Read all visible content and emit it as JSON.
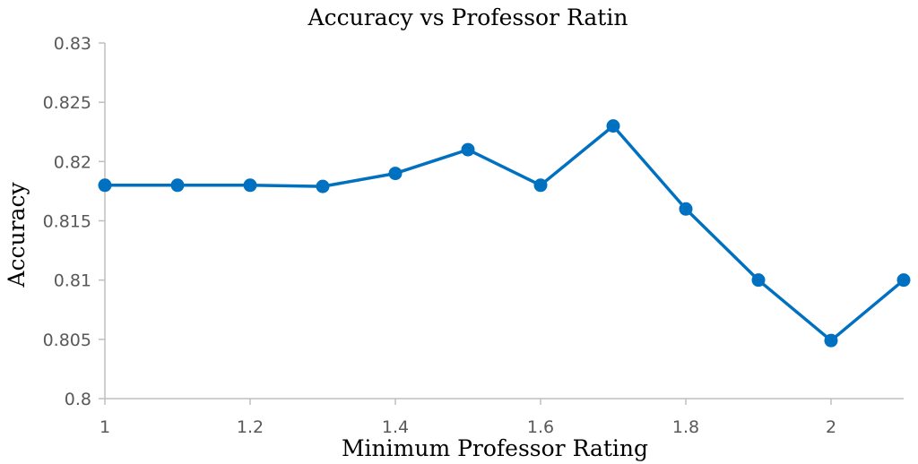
{
  "chart_data": {
    "type": "line",
    "title": "Accuracy vs Professor Ratin",
    "xlabel": "Minimum Professor Rating",
    "ylabel": "Accuracy",
    "xlim": [
      1,
      2.1
    ],
    "ylim": [
      0.8,
      0.83
    ],
    "x_ticks": [
      1,
      1.2,
      1.4,
      1.6,
      1.8,
      2
    ],
    "x_tick_labels": [
      "1",
      "1.2",
      "1.4",
      "1.6",
      "1.8",
      "2"
    ],
    "y_ticks": [
      0.8,
      0.805,
      0.81,
      0.815,
      0.82,
      0.825,
      0.83
    ],
    "y_tick_labels": [
      "0.8",
      "0.805",
      "0.81",
      "0.815",
      "0.82",
      "0.825",
      "0.83"
    ],
    "grid": false,
    "legend": "none",
    "series": [
      {
        "color": "#0070C0",
        "x": [
          1.0,
          1.1,
          1.2,
          1.3,
          1.4,
          1.5,
          1.6,
          1.7,
          1.8,
          1.9,
          2.0,
          2.1
        ],
        "y": [
          0.818,
          0.818,
          0.818,
          0.8179,
          0.819,
          0.821,
          0.818,
          0.823,
          0.816,
          0.81,
          0.8049,
          0.81
        ]
      }
    ]
  }
}
